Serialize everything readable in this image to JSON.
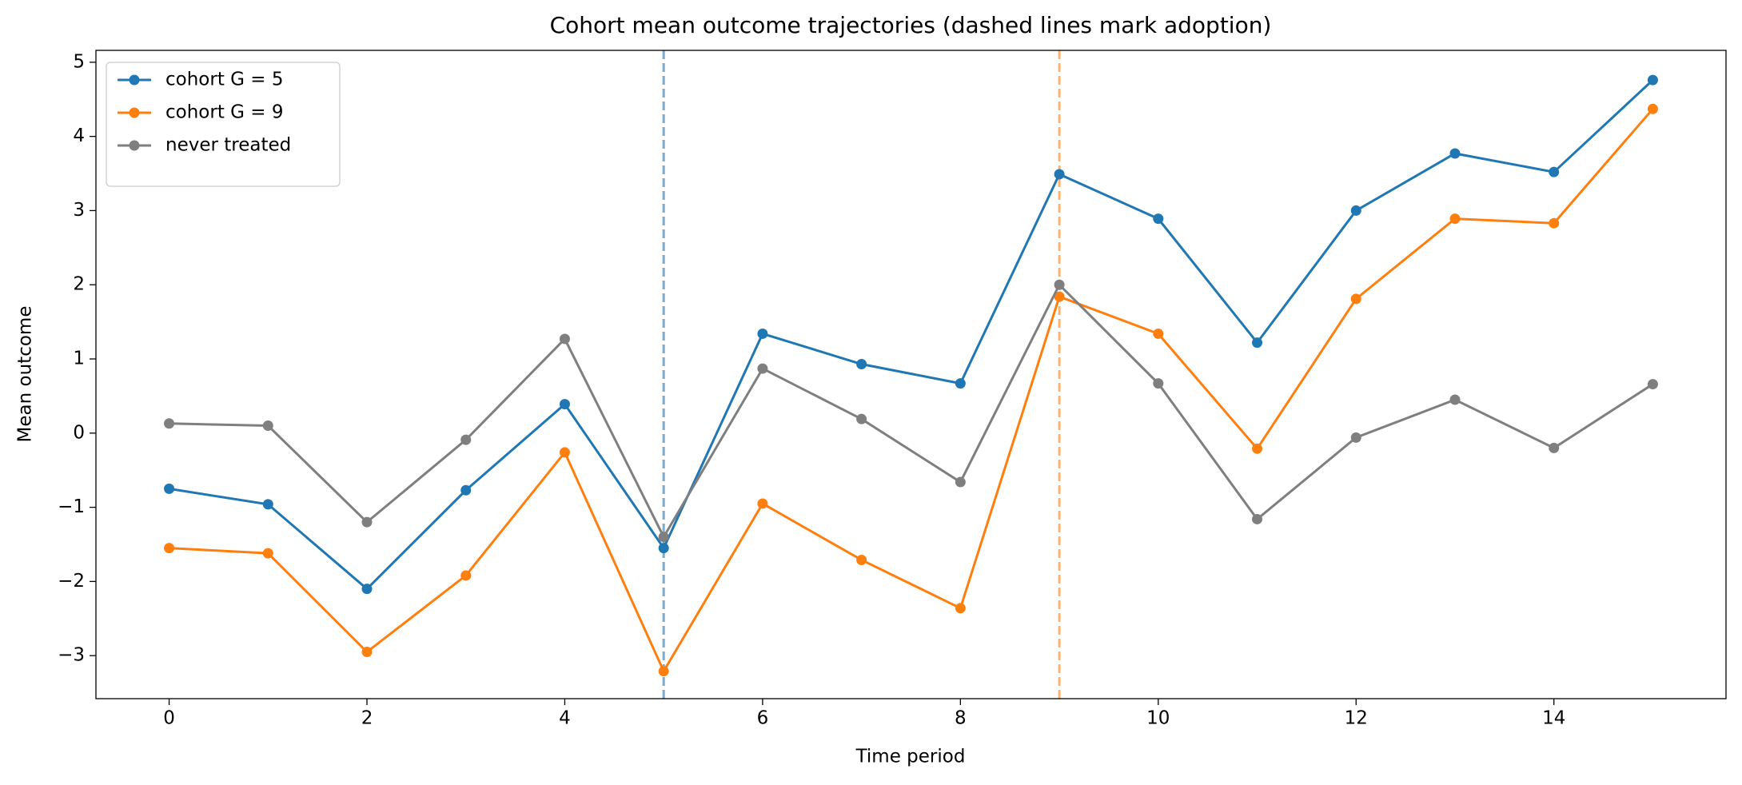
{
  "chart_data": {
    "type": "line",
    "title": "Cohort mean outcome trajectories (dashed lines mark adoption)",
    "x_label": "Time period",
    "y_label": "Mean outcome",
    "x": [
      0,
      1,
      2,
      3,
      4,
      5,
      6,
      7,
      8,
      9,
      10,
      11,
      12,
      13,
      14,
      15
    ],
    "series": [
      {
        "name": "cohort G = 5",
        "color": "#1f77b4",
        "values": [
          -0.75,
          -0.96,
          -2.1,
          -0.77,
          0.39,
          -1.55,
          1.34,
          0.93,
          0.67,
          3.49,
          2.89,
          1.22,
          3.0,
          3.77,
          3.52,
          4.76
        ]
      },
      {
        "name": "cohort G = 9",
        "color": "#ff7f0e",
        "values": [
          -1.55,
          -1.62,
          -2.95,
          -1.92,
          -0.26,
          -3.21,
          -0.95,
          -1.71,
          -2.36,
          1.84,
          1.34,
          -0.21,
          1.81,
          2.89,
          2.83,
          4.37
        ]
      },
      {
        "name": "never treated",
        "color": "#7f7f7f",
        "values": [
          0.13,
          0.1,
          -1.2,
          -0.09,
          1.27,
          -1.4,
          0.87,
          0.19,
          -0.66,
          2.0,
          0.67,
          -1.16,
          -0.06,
          0.45,
          -0.2,
          0.66
        ]
      }
    ],
    "adoption_lines": [
      {
        "x": 5,
        "color": "#1f77b4"
      },
      {
        "x": 9,
        "color": "#ff7f0e"
      }
    ],
    "xlim": [
      -0.74,
      15.74
    ],
    "ylim": [
      -3.58,
      5.16
    ],
    "xticks": [
      0,
      2,
      4,
      6,
      8,
      10,
      12,
      14
    ],
    "yticks": [
      {
        "value": -3,
        "label": "−3"
      },
      {
        "value": -2,
        "label": "−2"
      },
      {
        "value": -1,
        "label": "−1"
      },
      0,
      1,
      2,
      3,
      4,
      5
    ],
    "legend": "upper left",
    "grid": false
  }
}
